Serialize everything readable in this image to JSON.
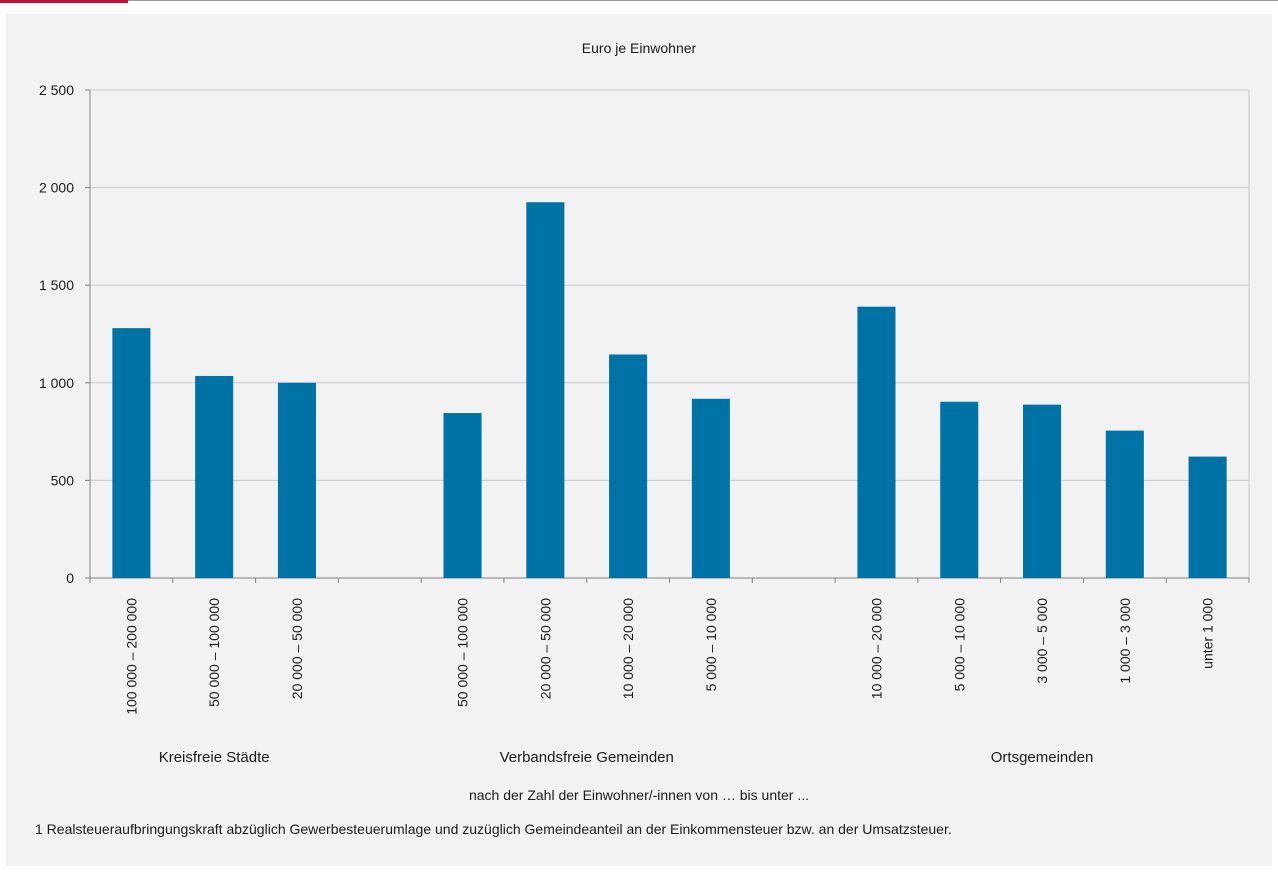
{
  "header": {
    "accent_color": "#c8102e"
  },
  "chart_data": {
    "type": "bar",
    "unit_label": "Euro je Einwohner",
    "xlabel": "nach der Zahl der Einwohner/-innen von … bis unter ...",
    "ylabel": "",
    "ylim": [
      0,
      2500
    ],
    "yticks": [
      0,
      500,
      1000,
      1500,
      2000,
      2500
    ],
    "ytick_labels": [
      "0",
      "500",
      "1 000",
      "1 500",
      "2 000",
      "2 500"
    ],
    "grid": true,
    "bar_color": "#0073a6",
    "groups": [
      {
        "name": "Kreisfreie Städte",
        "categories": [
          "100 000 – 200 000",
          "50 000 – 100 000",
          "20 000 – 50 000"
        ],
        "values": [
          1280,
          1035,
          1000
        ]
      },
      {
        "name": "Verbandsfreie Gemeinden",
        "categories": [
          "50 000 – 100 000",
          "20 000 – 50 000",
          "10 000 – 20 000",
          "5 000 – 10 000"
        ],
        "values": [
          845,
          1925,
          1145,
          918
        ]
      },
      {
        "name": "Ortsgemeinden",
        "categories": [
          "10 000 – 20 000",
          "5 000 – 10 000",
          "3 000 – 5 000",
          "1 000 – 3 000",
          "unter 1 000"
        ],
        "values": [
          1390,
          903,
          888,
          755,
          622
        ]
      }
    ]
  },
  "footnote": "1 Realsteueraufbringungskraft abzüglich Gewerbesteuerumlage und zuzüglich Gemeindeanteil an der Einkommensteuer bzw. an der Umsatzsteuer."
}
